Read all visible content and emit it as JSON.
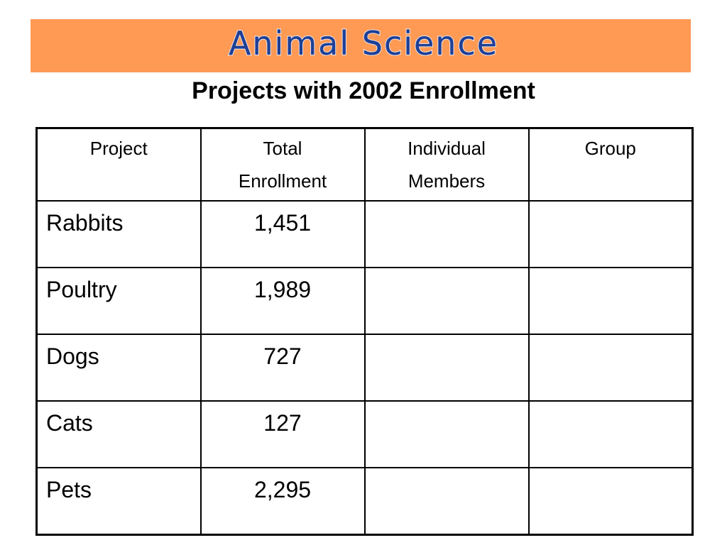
{
  "banner": {
    "title": "Animal Science",
    "color": "#ff9a55",
    "title_color": "#1f3f95"
  },
  "subtitle": "Projects with 2002 Enrollment",
  "table": {
    "headers": [
      [
        "Project"
      ],
      [
        "Total",
        "Enrollment"
      ],
      [
        "Individual",
        "Members"
      ],
      [
        "Group"
      ]
    ],
    "rows": [
      {
        "project": "Rabbits",
        "total": "1,451",
        "individual": "",
        "group": ""
      },
      {
        "project": "Poultry",
        "total": "1,989",
        "individual": "",
        "group": ""
      },
      {
        "project": "Dogs",
        "total": "727",
        "individual": "",
        "group": ""
      },
      {
        "project": "Cats",
        "total": "127",
        "individual": "",
        "group": ""
      },
      {
        "project": "Pets",
        "total": "2,295",
        "individual": "",
        "group": ""
      }
    ]
  }
}
